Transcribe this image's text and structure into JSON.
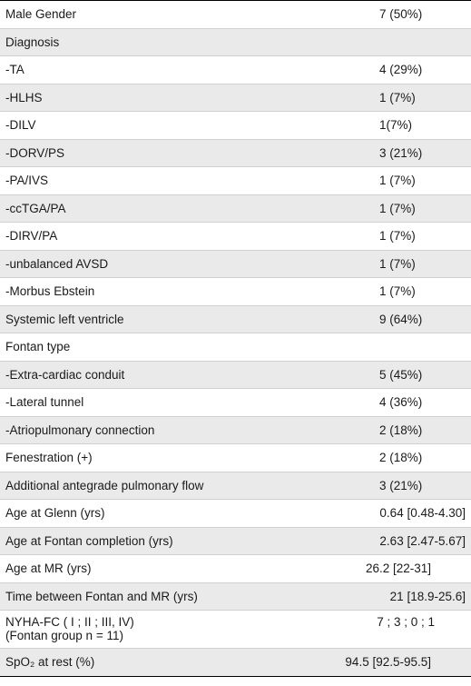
{
  "rows": [
    {
      "label": "Male Gender",
      "value": "7 (50%)"
    },
    {
      "label": "Diagnosis",
      "value": ""
    },
    {
      "label": "-TA",
      "value": "4 (29%)"
    },
    {
      "label": "-HLHS",
      "value": "1 (7%)"
    },
    {
      "label": "-DILV",
      "value": "1(7%)"
    },
    {
      "label": "-DORV/PS",
      "value": "3 (21%)"
    },
    {
      "label": "-PA/IVS",
      "value": "1 (7%)"
    },
    {
      "label": "-ccTGA/PA",
      "value": "1 (7%)"
    },
    {
      "label": "-DIRV/PA",
      "value": "1 (7%)"
    },
    {
      "label": "-unbalanced AVSD",
      "value": "1 (7%)"
    },
    {
      "label": "-Morbus Ebstein",
      "value": "1 (7%)"
    },
    {
      "label": "Systemic left ventricle",
      "value": "9 (64%)"
    },
    {
      "label": "Fontan type",
      "value": ""
    },
    {
      "label": "-Extra-cardiac conduit",
      "value": "5 (45%)"
    },
    {
      "label": "-Lateral tunnel",
      "value": "4 (36%)"
    },
    {
      "label": "-Atriopulmonary connection",
      "value": "2 (18%)"
    },
    {
      "label": "Fenestration (+)",
      "value": "2 (18%)"
    },
    {
      "label": "Additional antegrade pulmonary flow",
      "value": "3 (21%)"
    },
    {
      "label": "Age at Glenn (yrs)",
      "value": "0.64 [0.48-4.30]"
    },
    {
      "label": "Age at Fontan completion (yrs)",
      "value": "2.63 [2.47-5.67]"
    },
    {
      "label": "Age at MR (yrs)",
      "value": "26.2 [22-31]"
    },
    {
      "label": "Time between Fontan and MR (yrs)",
      "value": "21 [18.9-25.6]"
    },
    {
      "label": "NYHA-FC ( I ; II ; III, IV)",
      "label2": "(Fontan group n = 11)",
      "value": "7 ; 3 ; 0 ; 1"
    },
    {
      "label": "SpO₂ at rest (%)",
      "value": "94.5 [92.5-95.5]"
    }
  ]
}
